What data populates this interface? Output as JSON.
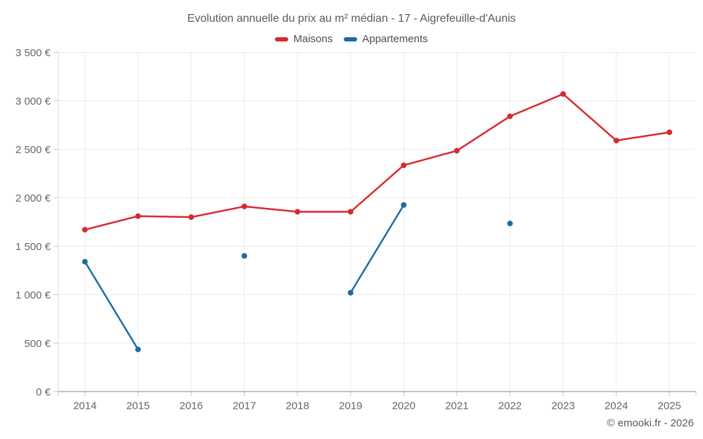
{
  "page": {
    "title": "Evolution annuelle du prix au m² médian - 17 - Aigrefeuille-d'Aunis",
    "footer": "© emooki.fr - 2026"
  },
  "chart_data": {
    "type": "line",
    "title": "Evolution annuelle du prix au m² médian - 17 - Aigrefeuille-d'Aunis",
    "categories": [
      "2014",
      "2015",
      "2016",
      "2017",
      "2018",
      "2019",
      "2020",
      "2021",
      "2022",
      "2023",
      "2024",
      "2025"
    ],
    "series": [
      {
        "name": "Maisons",
        "color": "#d8292f",
        "values": [
          1670,
          1810,
          1800,
          1910,
          1855,
          1855,
          2335,
          2485,
          2840,
          3070,
          2590,
          2675
        ]
      },
      {
        "name": "Appartements",
        "color": "#1a6ca4",
        "values": [
          1340,
          435,
          null,
          1400,
          null,
          1020,
          1925,
          null,
          1735,
          null,
          null,
          null
        ]
      }
    ],
    "xlabel": "",
    "ylabel": "",
    "ylim": [
      0,
      3500
    ],
    "y_tick_values": [
      0,
      500,
      1000,
      1500,
      2000,
      2500,
      3000,
      3500
    ],
    "y_tick_labels": [
      "0 €",
      "500 €",
      "1 000 €",
      "1 500 €",
      "2 000 €",
      "2 500 €",
      "3 000 €",
      "3 500 €"
    ],
    "grid": true,
    "legend_position": "top",
    "span_gaps": false,
    "colors": {
      "grid_line": "#ebebeb",
      "axis_border": "#b0b0b0",
      "tick_mark": "#c7c7c7",
      "tick_label": "#666666",
      "left_border": "#dcdcdc"
    }
  }
}
